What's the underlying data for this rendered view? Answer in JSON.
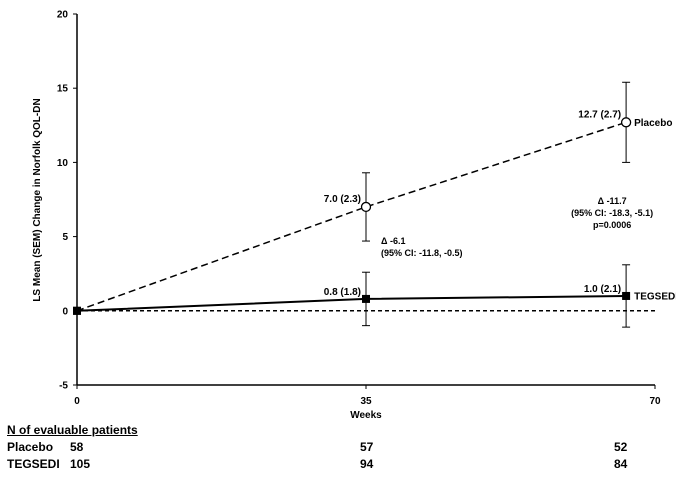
{
  "chart_data": {
    "type": "line",
    "ylabel": "LS Mean (SEM) Change in  Norfolk QOL-DN",
    "xlabel": "Weeks",
    "xlim": [
      0,
      70
    ],
    "ylim": [
      -5,
      20
    ],
    "x_ticks": [
      "0",
      "35",
      "70"
    ],
    "y_ticks": [
      "-5",
      "0",
      "5",
      "10",
      "15",
      "20"
    ],
    "grid": false,
    "legend": "inline labels at line ends",
    "series": [
      {
        "name": "Placebo",
        "style": "dashed",
        "marker": "open-circle",
        "x": [
          0,
          35,
          66.5
        ],
        "y": [
          0,
          7.0,
          12.7
        ],
        "sem": [
          0,
          2.3,
          2.7
        ],
        "labels": [
          "",
          "7.0 (2.3)",
          "12.7 (2.7)"
        ]
      },
      {
        "name": "TEGSEDI",
        "style": "solid",
        "marker": "filled-square",
        "x": [
          0,
          35,
          66.5
        ],
        "y": [
          0,
          0.8,
          1.0
        ],
        "sem": [
          0,
          1.8,
          2.1
        ],
        "labels": [
          "",
          "0.8 (1.8)",
          "1.0 (2.1)"
        ]
      }
    ],
    "reference_line": {
      "y": 0,
      "style": "dashed"
    },
    "annotations": [
      {
        "x": 35,
        "lines": [
          "Δ -6.1",
          "(95% CI: -11.8, -0.5)"
        ]
      },
      {
        "x": 66.5,
        "lines": [
          "Δ -11.7",
          "(95% CI: -18.3, -5.1)",
          "p=0.0006"
        ]
      }
    ]
  },
  "table": {
    "title": "N of evaluable patients",
    "rows": [
      {
        "label": "Placebo",
        "values": [
          "58",
          "57",
          "52"
        ]
      },
      {
        "label": "TEGSEDI",
        "values": [
          "105",
          "94",
          "84"
        ]
      }
    ]
  }
}
